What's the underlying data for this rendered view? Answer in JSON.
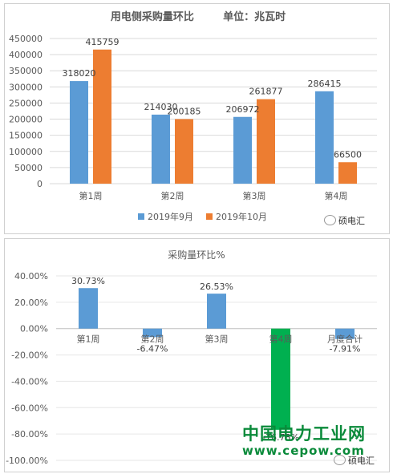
{
  "chart_data": [
    {
      "type": "bar",
      "title": "用电侧采购量环比        单位：兆瓦时",
      "categories": [
        "第1周",
        "第2周",
        "第3周",
        "第4周"
      ],
      "series": [
        {
          "name": "2019年9月",
          "values": [
            318020,
            214030,
            206972,
            286415
          ],
          "color": "#5b9bd5"
        },
        {
          "name": "2019年10月",
          "values": [
            415759,
            200185,
            261877,
            66500
          ],
          "color": "#ed7d31"
        }
      ],
      "ylim": [
        0,
        450000
      ],
      "yticks": [
        "0",
        "50000",
        "100000",
        "150000",
        "200000",
        "250000",
        "300000",
        "350000",
        "400000",
        "450000"
      ],
      "grid": true,
      "legend": "bottom"
    },
    {
      "type": "bar",
      "title": "采购量环比%",
      "categories": [
        "第1周",
        "第2周",
        "第3周",
        "第4周",
        "月度合计"
      ],
      "values": [
        30.73,
        -6.47,
        26.53,
        -76.78,
        -7.91
      ],
      "data_labels": [
        "30.73%",
        "-6.47%",
        "26.53%",
        "-76.78%",
        "-7.91%"
      ],
      "colors": [
        "#5b9bd5",
        "#5b9bd5",
        "#5b9bd5",
        "#00b050",
        "#5b9bd5"
      ],
      "ylim": [
        -100,
        40
      ],
      "yticks": [
        "40.00%",
        "20.00%",
        "0.00%",
        "-20.00%",
        "-40.00%",
        "-60.00%",
        "-80.00%",
        "-100.00%"
      ],
      "grid": true
    }
  ],
  "watermarks": {
    "logo_text": "硕电汇",
    "site_name": "中国电力工业网",
    "site_url": "www.cepow.com"
  }
}
